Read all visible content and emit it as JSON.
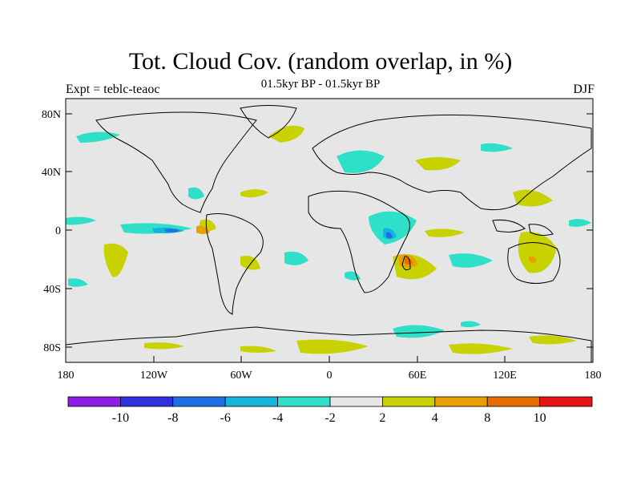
{
  "title": "Tot. Cloud Cov. (random overlap, in %)",
  "subtitle": "01.5kyr BP - 01.5kyr BP",
  "left_label": "Expt = teblc-teaoc",
  "right_label": "DJF",
  "map": {
    "lat_ticks": [
      "80N",
      "40N",
      "0",
      "40S",
      "80S"
    ],
    "lon_ticks": [
      "180",
      "120W",
      "60W",
      "0",
      "60E",
      "120E",
      "180"
    ],
    "background_color": "#e6e6e6"
  },
  "colorbar": {
    "colors": [
      "#8c1ee6",
      "#2d32dc",
      "#1e6ee6",
      "#14b4dc",
      "#2ee0c8",
      "#e6e6e6",
      "#c8d200",
      "#e6a000",
      "#e66e00",
      "#e61414"
    ],
    "labels": [
      "-10",
      "-8",
      "-6",
      "-4",
      "-2",
      "2",
      "4",
      "8",
      "10"
    ]
  }
}
